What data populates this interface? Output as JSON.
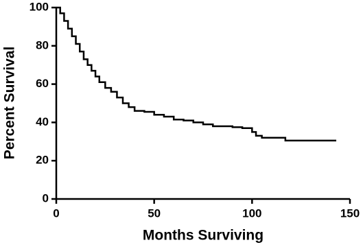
{
  "chart_data": {
    "type": "line",
    "step": true,
    "x_label": "Months Surviving",
    "y_label": "Percent Survival",
    "x": [
      0,
      2,
      4,
      6,
      8,
      10,
      12,
      14,
      16,
      18,
      20,
      22,
      25,
      28,
      31,
      34,
      37,
      40,
      45,
      50,
      55,
      60,
      65,
      70,
      75,
      80,
      85,
      90,
      95,
      99,
      100,
      102,
      105,
      110,
      117,
      120,
      130,
      143
    ],
    "series": [
      {
        "name": "Survival",
        "color": "#000000",
        "values": [
          100,
          97,
          93,
          89,
          85,
          81,
          77,
          73,
          70,
          67,
          64,
          61,
          58,
          56,
          53,
          50,
          48,
          46,
          45.5,
          44,
          43,
          41.5,
          41,
          40,
          39,
          38,
          38,
          37.5,
          37,
          37,
          35,
          33,
          32,
          32,
          30.5,
          30.5,
          30.5,
          30.5
        ]
      }
    ],
    "xlim": [
      0,
      150
    ],
    "xticks": [
      0,
      50,
      100,
      150
    ],
    "ylim": [
      0,
      100
    ],
    "yticks": [
      0,
      20,
      40,
      60,
      80,
      100
    ]
  }
}
